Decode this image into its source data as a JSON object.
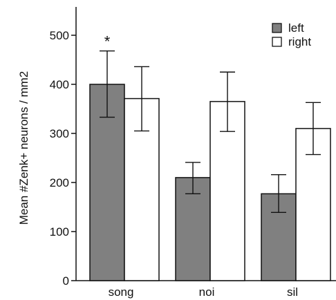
{
  "chart_data": {
    "type": "bar",
    "categories": [
      "song",
      "noi",
      "sil"
    ],
    "series": [
      {
        "name": "left",
        "color": "#808080",
        "values": [
          400,
          210,
          177
        ],
        "error_low": [
          333,
          177,
          139
        ],
        "error_high": [
          468,
          241,
          216
        ]
      },
      {
        "name": "right",
        "color": "#ffffff",
        "values": [
          371,
          365,
          310
        ],
        "error_low": [
          305,
          304,
          257
        ],
        "error_high": [
          436,
          425,
          363
        ]
      }
    ],
    "ylabel": "Mean #Zenk+ neurons / mm2",
    "xlabel": "",
    "ylim": [
      0,
      560
    ],
    "yticks": [
      0,
      100,
      200,
      300,
      400,
      500
    ],
    "legend": {
      "position": "top-right",
      "entries": [
        "left",
        "right"
      ]
    },
    "annotations": [
      {
        "text": "*",
        "category": "song",
        "series": "left"
      }
    ],
    "grid": false
  }
}
